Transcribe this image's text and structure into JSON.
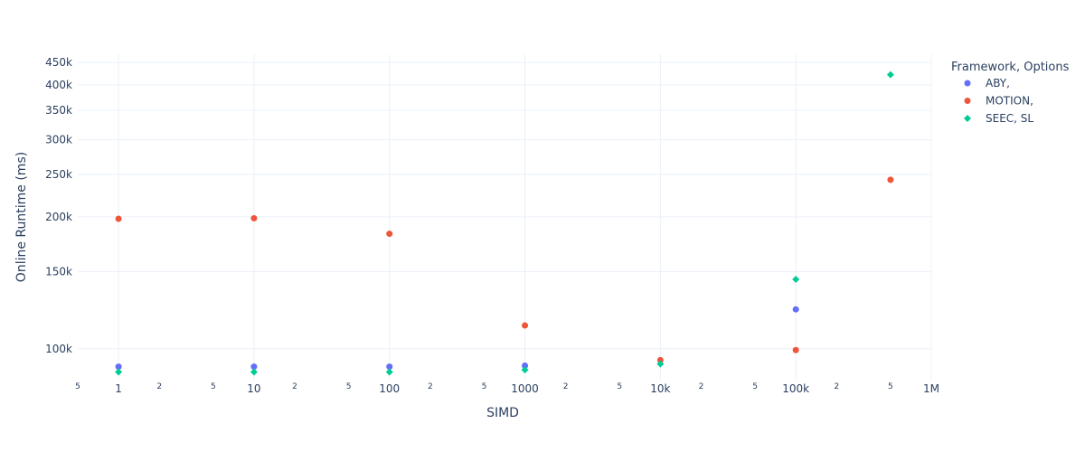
{
  "chart_data": {
    "type": "scatter",
    "xlabel": "SIMD",
    "ylabel": "Online Runtime (ms)",
    "x_scale": "log",
    "y_scale": "log",
    "xlim": [
      0.5,
      1000000
    ],
    "ylim": [
      85000,
      470000
    ],
    "grid": true,
    "legend": {
      "title": "Framework, Options",
      "position": "right"
    },
    "x_ticks": [
      {
        "value": 1,
        "label": "1"
      },
      {
        "value": 10,
        "label": "10"
      },
      {
        "value": 100,
        "label": "100"
      },
      {
        "value": 1000,
        "label": "1000"
      },
      {
        "value": 10000,
        "label": "10k"
      },
      {
        "value": 100000,
        "label": "100k"
      },
      {
        "value": 1000000,
        "label": "1M"
      }
    ],
    "x_minor_ticks": [
      {
        "value": 0.5,
        "label": "5"
      },
      {
        "value": 2,
        "label": "2"
      },
      {
        "value": 5,
        "label": "5"
      },
      {
        "value": 20,
        "label": "2"
      },
      {
        "value": 50,
        "label": "5"
      },
      {
        "value": 200,
        "label": "2"
      },
      {
        "value": 500,
        "label": "5"
      },
      {
        "value": 2000,
        "label": "2"
      },
      {
        "value": 5000,
        "label": "5"
      },
      {
        "value": 20000,
        "label": "2"
      },
      {
        "value": 50000,
        "label": "5"
      },
      {
        "value": 200000,
        "label": "2"
      },
      {
        "value": 500000,
        "label": "5"
      }
    ],
    "y_ticks": [
      {
        "value": 100000,
        "label": "100k"
      },
      {
        "value": 150000,
        "label": "150k"
      },
      {
        "value": 200000,
        "label": "200k"
      },
      {
        "value": 250000,
        "label": "250k"
      },
      {
        "value": 300000,
        "label": "300k"
      },
      {
        "value": 350000,
        "label": "350k"
      },
      {
        "value": 400000,
        "label": "400k"
      },
      {
        "value": 450000,
        "label": "450k"
      }
    ],
    "series": [
      {
        "name": "ABY,",
        "color": "#636efa",
        "marker": "circle",
        "x": [
          1,
          10,
          100,
          1000,
          100000
        ],
        "y": [
          91000,
          91000,
          91000,
          91500,
          123000
        ]
      },
      {
        "name": "MOTION,",
        "color": "#ef553b",
        "marker": "circle",
        "x": [
          1,
          10,
          100,
          1000,
          10000,
          100000,
          500000
        ],
        "y": [
          198000,
          198500,
          183000,
          113000,
          94200,
          99300,
          243000
        ]
      },
      {
        "name": "SEEC, SL",
        "color": "#00cc96",
        "marker": "diamond",
        "x": [
          1,
          10,
          100,
          1000,
          10000,
          100000,
          500000
        ],
        "y": [
          88500,
          88500,
          88500,
          89500,
          92300,
          144000,
          422000
        ]
      }
    ]
  }
}
